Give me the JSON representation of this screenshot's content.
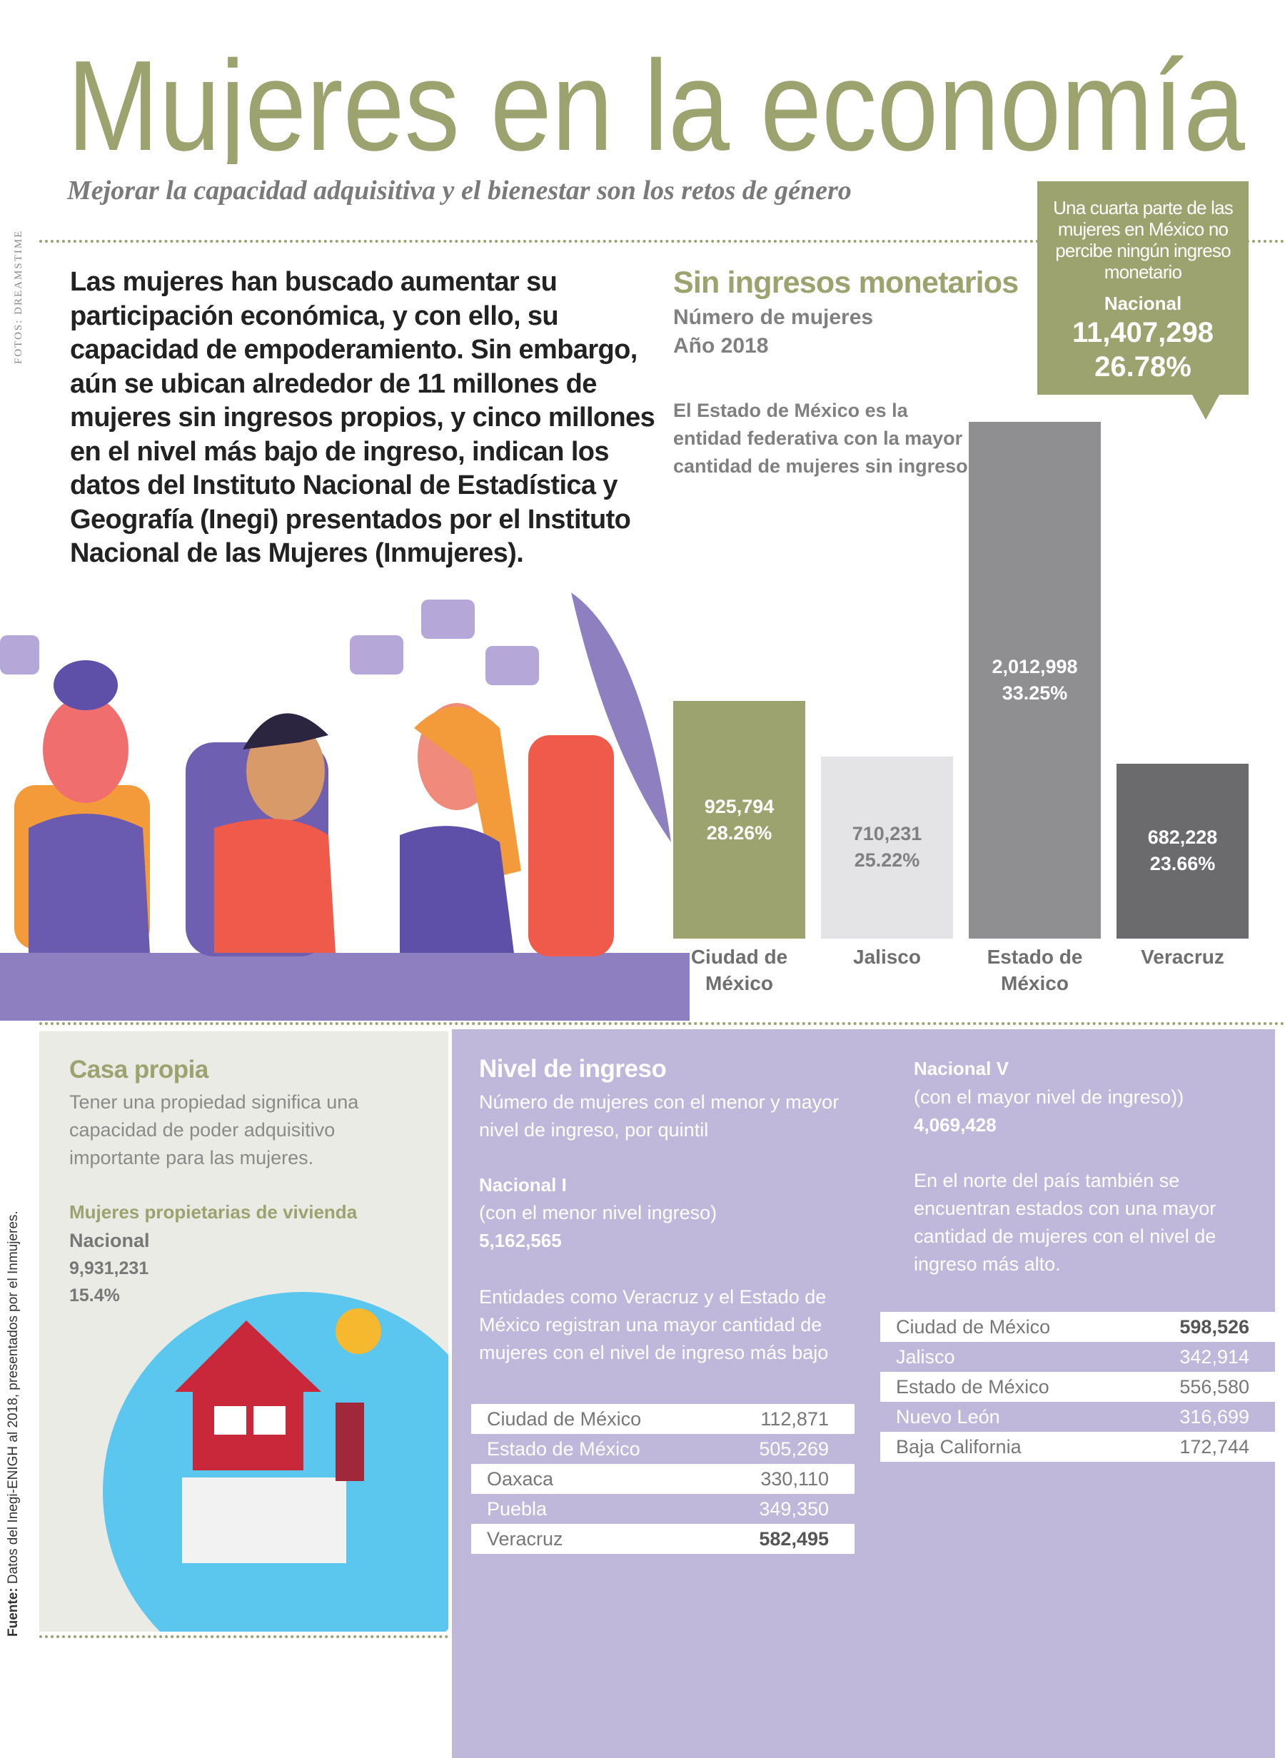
{
  "header": {
    "title": "Mujeres en la economía",
    "subtitle": "Mejorar la capacidad adquisitiva y el bienestar son los retos de género",
    "photo_credit": "FOTOS: DREAMSTIME"
  },
  "intro": "Las mujeres han buscado aumentar su participación económica, y con ello, su capacidad de empoderamiento. Sin embargo, aún se ubican alrededor de 11 millones de mujeres sin ingresos propios, y cinco millones en el nivel más bajo de ingreso, indican los datos del Instituto Nacional de Estadística y Geografía (Inegi) presentados por el Instituto Nacional de las Mujeres (Inmujeres).",
  "national_box": {
    "text": "Una cuarta parte de las mujeres en México no percibe ningún ingreso monetario",
    "label": "Nacional",
    "value": "11,407,298",
    "share": "26.78%"
  },
  "chart_data": {
    "type": "bar",
    "title": "Sin ingresos monetarios",
    "subtitle": "Número de mujeres",
    "period": "Año 2018",
    "annotation": "El Estado de México es la entidad federativa con la mayor cantidad de mujeres sin ingreso",
    "categories": [
      "Ciudad de México",
      "Jalisco",
      "Estado de México",
      "Veracruz"
    ],
    "values": [
      925794,
      710231,
      2012998,
      682228
    ],
    "value_labels": [
      "925,794",
      "710,231",
      "2,012,998",
      "682,228"
    ],
    "shares": [
      28.26,
      25.22,
      33.25,
      23.66
    ],
    "share_labels": [
      "28.26%",
      "25.22%",
      "33.25%",
      "23.66%"
    ],
    "colors": [
      "#9ca36f",
      "#e4e4e6",
      "#8f8f91",
      "#6b6b6d"
    ]
  },
  "home": {
    "title": "Casa propia",
    "description": "Tener una propiedad significa una capacidad de poder adquisitivo importante para las mujeres.",
    "stat_title": "Mujeres propietarias de vivienda",
    "label": "Nacional",
    "value": "9,931,231",
    "share": "15.4%"
  },
  "income": {
    "title": "Nivel de ingreso",
    "description": "Número de mujeres con el menor y mayor nivel de ingreso, por quintil",
    "low": {
      "label": "Nacional I",
      "note": "(con el menor nivel ingreso)",
      "value": "5,162,565"
    },
    "low_text": "Entidades como Veracruz y el Estado de México registran una mayor cantidad de mujeres con el nivel de ingreso más bajo",
    "low_table": {
      "rows": [
        [
          "Ciudad de México",
          "112,871"
        ],
        [
          "Estado de México",
          "505,269"
        ],
        [
          "Oaxaca",
          "330,110"
        ],
        [
          "Puebla",
          "349,350"
        ],
        [
          "Veracruz",
          "582,495"
        ]
      ]
    },
    "high": {
      "label": "Nacional V",
      "note": "(con el mayor nivel de ingreso))",
      "value": "4,069,428"
    },
    "high_text": "En el norte del país también se encuentran estados con una mayor cantidad de mujeres con el nivel de ingreso más alto.",
    "high_table": {
      "rows": [
        [
          "Ciudad de México",
          "598,526"
        ],
        [
          "Jalisco",
          "342,914"
        ],
        [
          "Estado de México",
          "556,580"
        ],
        [
          "Nuevo León",
          "316,699"
        ],
        [
          "Baja California",
          "172,744"
        ]
      ]
    }
  },
  "source": {
    "label": "Fuente:",
    "text": "Datos del Inegi-ENIGH al 2018, presentados por el Inmujeres."
  }
}
